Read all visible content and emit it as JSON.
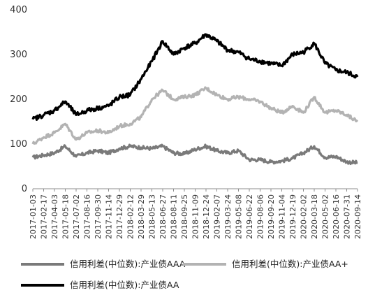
{
  "chart_data": {
    "type": "line",
    "title": "",
    "xlabel": "",
    "ylabel": "",
    "ylim": [
      0,
      400
    ],
    "yticks": [
      0,
      100,
      200,
      300,
      400
    ],
    "grid": false,
    "legend_position": "bottom",
    "x_tick_labels": [
      "2017-01-03",
      "2017-02-17",
      "2017-04-03",
      "2017-05-18",
      "2017-07-02",
      "2017-08-16",
      "2017-09-30",
      "2017-11-14",
      "2017-12-29",
      "2018-02-12",
      "2018-03-29",
      "2018-05-13",
      "2018-06-27",
      "2018-08-11",
      "2018-09-25",
      "2018-11-09",
      "2018-12-24",
      "2019-02-07",
      "2019-03-24",
      "2019-05-08",
      "2019-06-22",
      "2019-08-06",
      "2019-09-20",
      "2019-11-04",
      "2019-12-19",
      "2020-02-02",
      "2020-03-18",
      "2020-05-02",
      "2020-06-16",
      "2020-07-31",
      "2020-09-14"
    ],
    "x": [
      "2017-01-03",
      "2017-02-17",
      "2017-04-03",
      "2017-05-18",
      "2017-07-02",
      "2017-08-16",
      "2017-09-30",
      "2017-11-14",
      "2017-12-29",
      "2018-02-12",
      "2018-03-29",
      "2018-05-13",
      "2018-06-27",
      "2018-08-11",
      "2018-09-25",
      "2018-11-09",
      "2018-12-24",
      "2019-02-07",
      "2019-03-24",
      "2019-05-08",
      "2019-06-22",
      "2019-08-06",
      "2019-09-20",
      "2019-11-04",
      "2019-12-19",
      "2020-02-02",
      "2020-03-18",
      "2020-05-02",
      "2020-06-16",
      "2020-07-31",
      "2020-09-14"
    ],
    "series": [
      {
        "name": "信用利差(中位数):产业债AAA",
        "color": "#7a7a7a",
        "values": [
          70,
          75,
          80,
          95,
          72,
          80,
          85,
          80,
          90,
          95,
          92,
          90,
          95,
          80,
          78,
          88,
          95,
          85,
          80,
          85,
          65,
          65,
          60,
          62,
          68,
          80,
          95,
          70,
          72,
          60,
          58
        ]
      },
      {
        "name": "信用利差(中位数):产业债AA+",
        "color": "#b3b3b3",
        "values": [
          100,
          115,
          125,
          145,
          110,
          125,
          130,
          125,
          140,
          145,
          160,
          200,
          220,
          200,
          205,
          210,
          225,
          210,
          200,
          205,
          200,
          195,
          180,
          170,
          185,
          170,
          205,
          170,
          175,
          165,
          150
        ]
      },
      {
        "name": "信用利差(中位数):产业债AA",
        "color": "#000000",
        "values": [
          155,
          165,
          175,
          195,
          165,
          175,
          180,
          185,
          205,
          210,
          245,
          285,
          330,
          300,
          315,
          325,
          345,
          330,
          310,
          305,
          290,
          285,
          280,
          275,
          300,
          305,
          325,
          280,
          265,
          260,
          250
        ]
      }
    ]
  }
}
